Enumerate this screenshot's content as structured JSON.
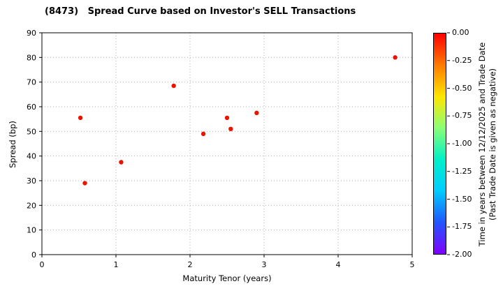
{
  "title": "(8473)   Spread Curve based on Investor's SELL Transactions",
  "chart_data": {
    "type": "scatter",
    "title": "(8473)   Spread Curve based on Investor's SELL Transactions",
    "xlabel": "Maturity Tenor (years)",
    "ylabel": "Spread (bp)",
    "xlim": [
      0,
      5
    ],
    "ylim": [
      0,
      90
    ],
    "xticks": [
      0,
      1,
      2,
      3,
      4,
      5
    ],
    "yticks": [
      0,
      10,
      20,
      30,
      40,
      50,
      60,
      70,
      80,
      90
    ],
    "grid": true,
    "series": [
      {
        "name": "SELL transactions",
        "color": "#ee1100",
        "points": [
          [
            0.52,
            55.5
          ],
          [
            0.58,
            29.0
          ],
          [
            1.07,
            37.5
          ],
          [
            1.78,
            68.5
          ],
          [
            2.18,
            49.0
          ],
          [
            2.5,
            55.5
          ],
          [
            2.55,
            51.0
          ],
          [
            2.9,
            57.5
          ],
          [
            4.77,
            80.0
          ]
        ],
        "color_values": [
          0.0,
          0.0,
          0.0,
          0.0,
          0.0,
          0.0,
          0.0,
          0.0,
          0.0
        ]
      }
    ],
    "colorbar": {
      "label_line1": "Time in years between 12/12/2025 and Trade Date",
      "label_line2": "(Past Trade Date is given as negative)",
      "max": 0.0,
      "min": -2.0,
      "ticks": [
        "0.00",
        "-0.25",
        "-0.50",
        "-0.75",
        "-1.00",
        "-1.25",
        "-1.50",
        "-1.75",
        "-2.00"
      ],
      "colors": [
        "#ff0000",
        "#ff7a00",
        "#ffe600",
        "#8aff75",
        "#00f0c8",
        "#00ccff",
        "#2255ff",
        "#8000ff"
      ]
    }
  }
}
